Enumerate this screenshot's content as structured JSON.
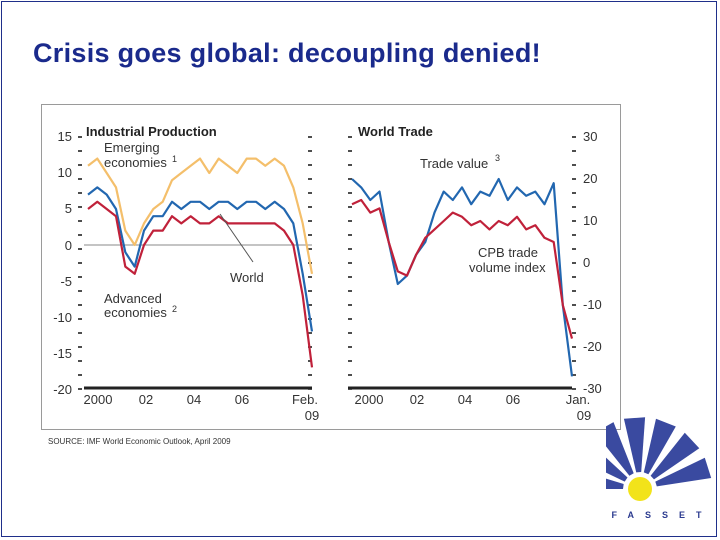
{
  "page": {
    "title": "Crisis goes global: decoupling denied!"
  },
  "source_note": "SOURCE: IMF World Economic Outlook, April 2009",
  "logo": {
    "text": "FASSET",
    "colors": {
      "rays": "#3a4aa0",
      "sun": "#f2e31a"
    }
  },
  "colors": {
    "title": "#1a2a8c",
    "emerging": "#f4bf6b",
    "world": "#2267b0",
    "advanced": "#c0213a",
    "zero": "#888888"
  },
  "chart_data": [
    {
      "type": "line",
      "title": "Industrial Production",
      "ylim": [
        -20,
        15
      ],
      "yticks": [
        "15",
        "10",
        "5",
        "0",
        "-5",
        "-10",
        "-15",
        "-20"
      ],
      "xticks": [
        "2000",
        "02",
        "04",
        "06",
        "Feb.",
        "09"
      ],
      "annotations": {
        "emerging_line1": "Emerging",
        "emerging_line2": "economies",
        "emerging_sup": "1",
        "world": "World",
        "advanced_line1": "Advanced",
        "advanced_line2": "economies",
        "advanced_sup": "2"
      },
      "series": [
        {
          "name": "Emerging economies",
          "values": [
            11,
            12,
            10,
            8,
            2,
            0,
            3,
            5,
            6,
            9,
            10,
            11,
            12,
            10,
            12,
            11,
            10,
            12,
            12,
            11,
            12,
            11,
            8,
            3,
            -4
          ]
        },
        {
          "name": "World",
          "values": [
            7,
            8,
            7,
            5,
            -1,
            -3,
            2,
            4,
            4,
            6,
            5,
            6,
            6,
            5,
            6,
            6,
            5,
            6,
            6,
            5,
            6,
            5,
            3,
            -4,
            -12
          ]
        },
        {
          "name": "Advanced economies",
          "values": [
            5,
            6,
            5,
            4,
            -3,
            -4,
            0,
            2,
            2,
            4,
            3,
            4,
            3,
            3,
            4,
            3,
            3,
            3,
            3,
            3,
            3,
            2,
            0,
            -7,
            -17
          ]
        }
      ]
    },
    {
      "type": "line",
      "title": "World Trade",
      "ylim": [
        -30,
        30
      ],
      "yticks": [
        "30",
        "20",
        "10",
        "0",
        "-10",
        "-20",
        "-30"
      ],
      "xticks": [
        "2000",
        "02",
        "04",
        "06",
        "Jan.",
        "09"
      ],
      "annotations": {
        "trade_value": "Trade value",
        "trade_value_sup": "3",
        "cpb_line1": "CPB trade",
        "cpb_line2": "volume index"
      },
      "series": [
        {
          "name": "Trade value",
          "values": [
            20,
            18,
            15,
            17,
            5,
            -5,
            -3,
            2,
            5,
            12,
            17,
            15,
            18,
            14,
            17,
            16,
            20,
            15,
            18,
            16,
            17,
            14,
            19,
            -10,
            -27
          ]
        },
        {
          "name": "CPB trade volume index",
          "values": [
            14,
            15,
            12,
            13,
            5,
            -2,
            -3,
            2,
            6,
            8,
            10,
            12,
            11,
            9,
            10,
            8,
            10,
            9,
            11,
            8,
            9,
            6,
            5,
            -10,
            -18
          ]
        }
      ]
    }
  ]
}
